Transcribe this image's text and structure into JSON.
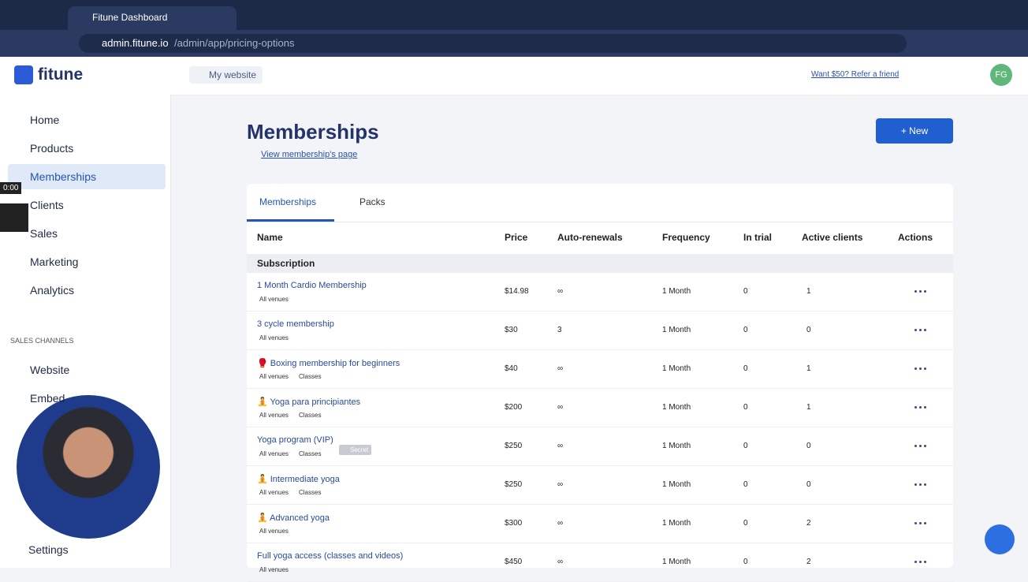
{
  "browser": {
    "tab_title": "Fitune Dashboard",
    "url_host": "admin.fitune.io",
    "url_path": "/admin/app/pricing-options"
  },
  "header": {
    "logo": "fitune",
    "my_website": "My website",
    "refer": "Want $50? Refer a friend",
    "avatar": "FG"
  },
  "sidebar": {
    "nav": [
      "Home",
      "Products",
      "Memberships",
      "Clients",
      "Sales",
      "Marketing",
      "Analytics"
    ],
    "section": "SALES CHANNELS",
    "channels": [
      "Website",
      "Embed"
    ],
    "settings": "Settings"
  },
  "video": {
    "time": "0:00"
  },
  "main": {
    "title": "Memberships",
    "link": "View membership's page",
    "new_button": "+ New",
    "tabs": [
      "Memberships",
      "Packs"
    ],
    "columns": [
      "Name",
      "Price",
      "Auto-renewals",
      "Frequency",
      "In trial",
      "Active clients",
      "Actions"
    ],
    "group": "Subscription",
    "rows": [
      {
        "name": "1 Month Cardio Membership",
        "tags": [
          "All venues"
        ],
        "price": "$14.98",
        "auto_renewals": "∞",
        "frequency": "1 Month",
        "in_trial": "0",
        "active_clients": "1"
      },
      {
        "name": "3 cycle membership",
        "tags": [
          "All venues"
        ],
        "price": "$30",
        "auto_renewals": "3",
        "frequency": "1 Month",
        "in_trial": "0",
        "active_clients": "0"
      },
      {
        "name": "🥊 Boxing membership for beginners",
        "tags": [
          "All venues",
          "Classes"
        ],
        "price": "$40",
        "auto_renewals": "∞",
        "frequency": "1 Month",
        "in_trial": "0",
        "active_clients": "1"
      },
      {
        "name": "🧘 Yoga para principiantes",
        "tags": [
          "All venues",
          "Classes"
        ],
        "price": "$200",
        "auto_renewals": "∞",
        "frequency": "1 Month",
        "in_trial": "0",
        "active_clients": "1"
      },
      {
        "name": "Yoga program (VIP)",
        "tags": [
          "All venues",
          "Classes"
        ],
        "badge": "Secret",
        "price": "$250",
        "auto_renewals": "∞",
        "frequency": "1 Month",
        "in_trial": "0",
        "active_clients": "0"
      },
      {
        "name": "🧘 Intermediate yoga",
        "tags": [
          "All venues",
          "Classes"
        ],
        "price": "$250",
        "auto_renewals": "∞",
        "frequency": "1 Month",
        "in_trial": "0",
        "active_clients": "0"
      },
      {
        "name": "🧘 Advanced yoga",
        "tags": [
          "All venues"
        ],
        "price": "$300",
        "auto_renewals": "∞",
        "frequency": "1 Month",
        "in_trial": "0",
        "active_clients": "2"
      },
      {
        "name": "Full yoga access (classes and videos)",
        "tags": [
          "All venues"
        ],
        "price": "$450",
        "auto_renewals": "∞",
        "frequency": "1 Month",
        "in_trial": "0",
        "active_clients": "2"
      }
    ]
  }
}
